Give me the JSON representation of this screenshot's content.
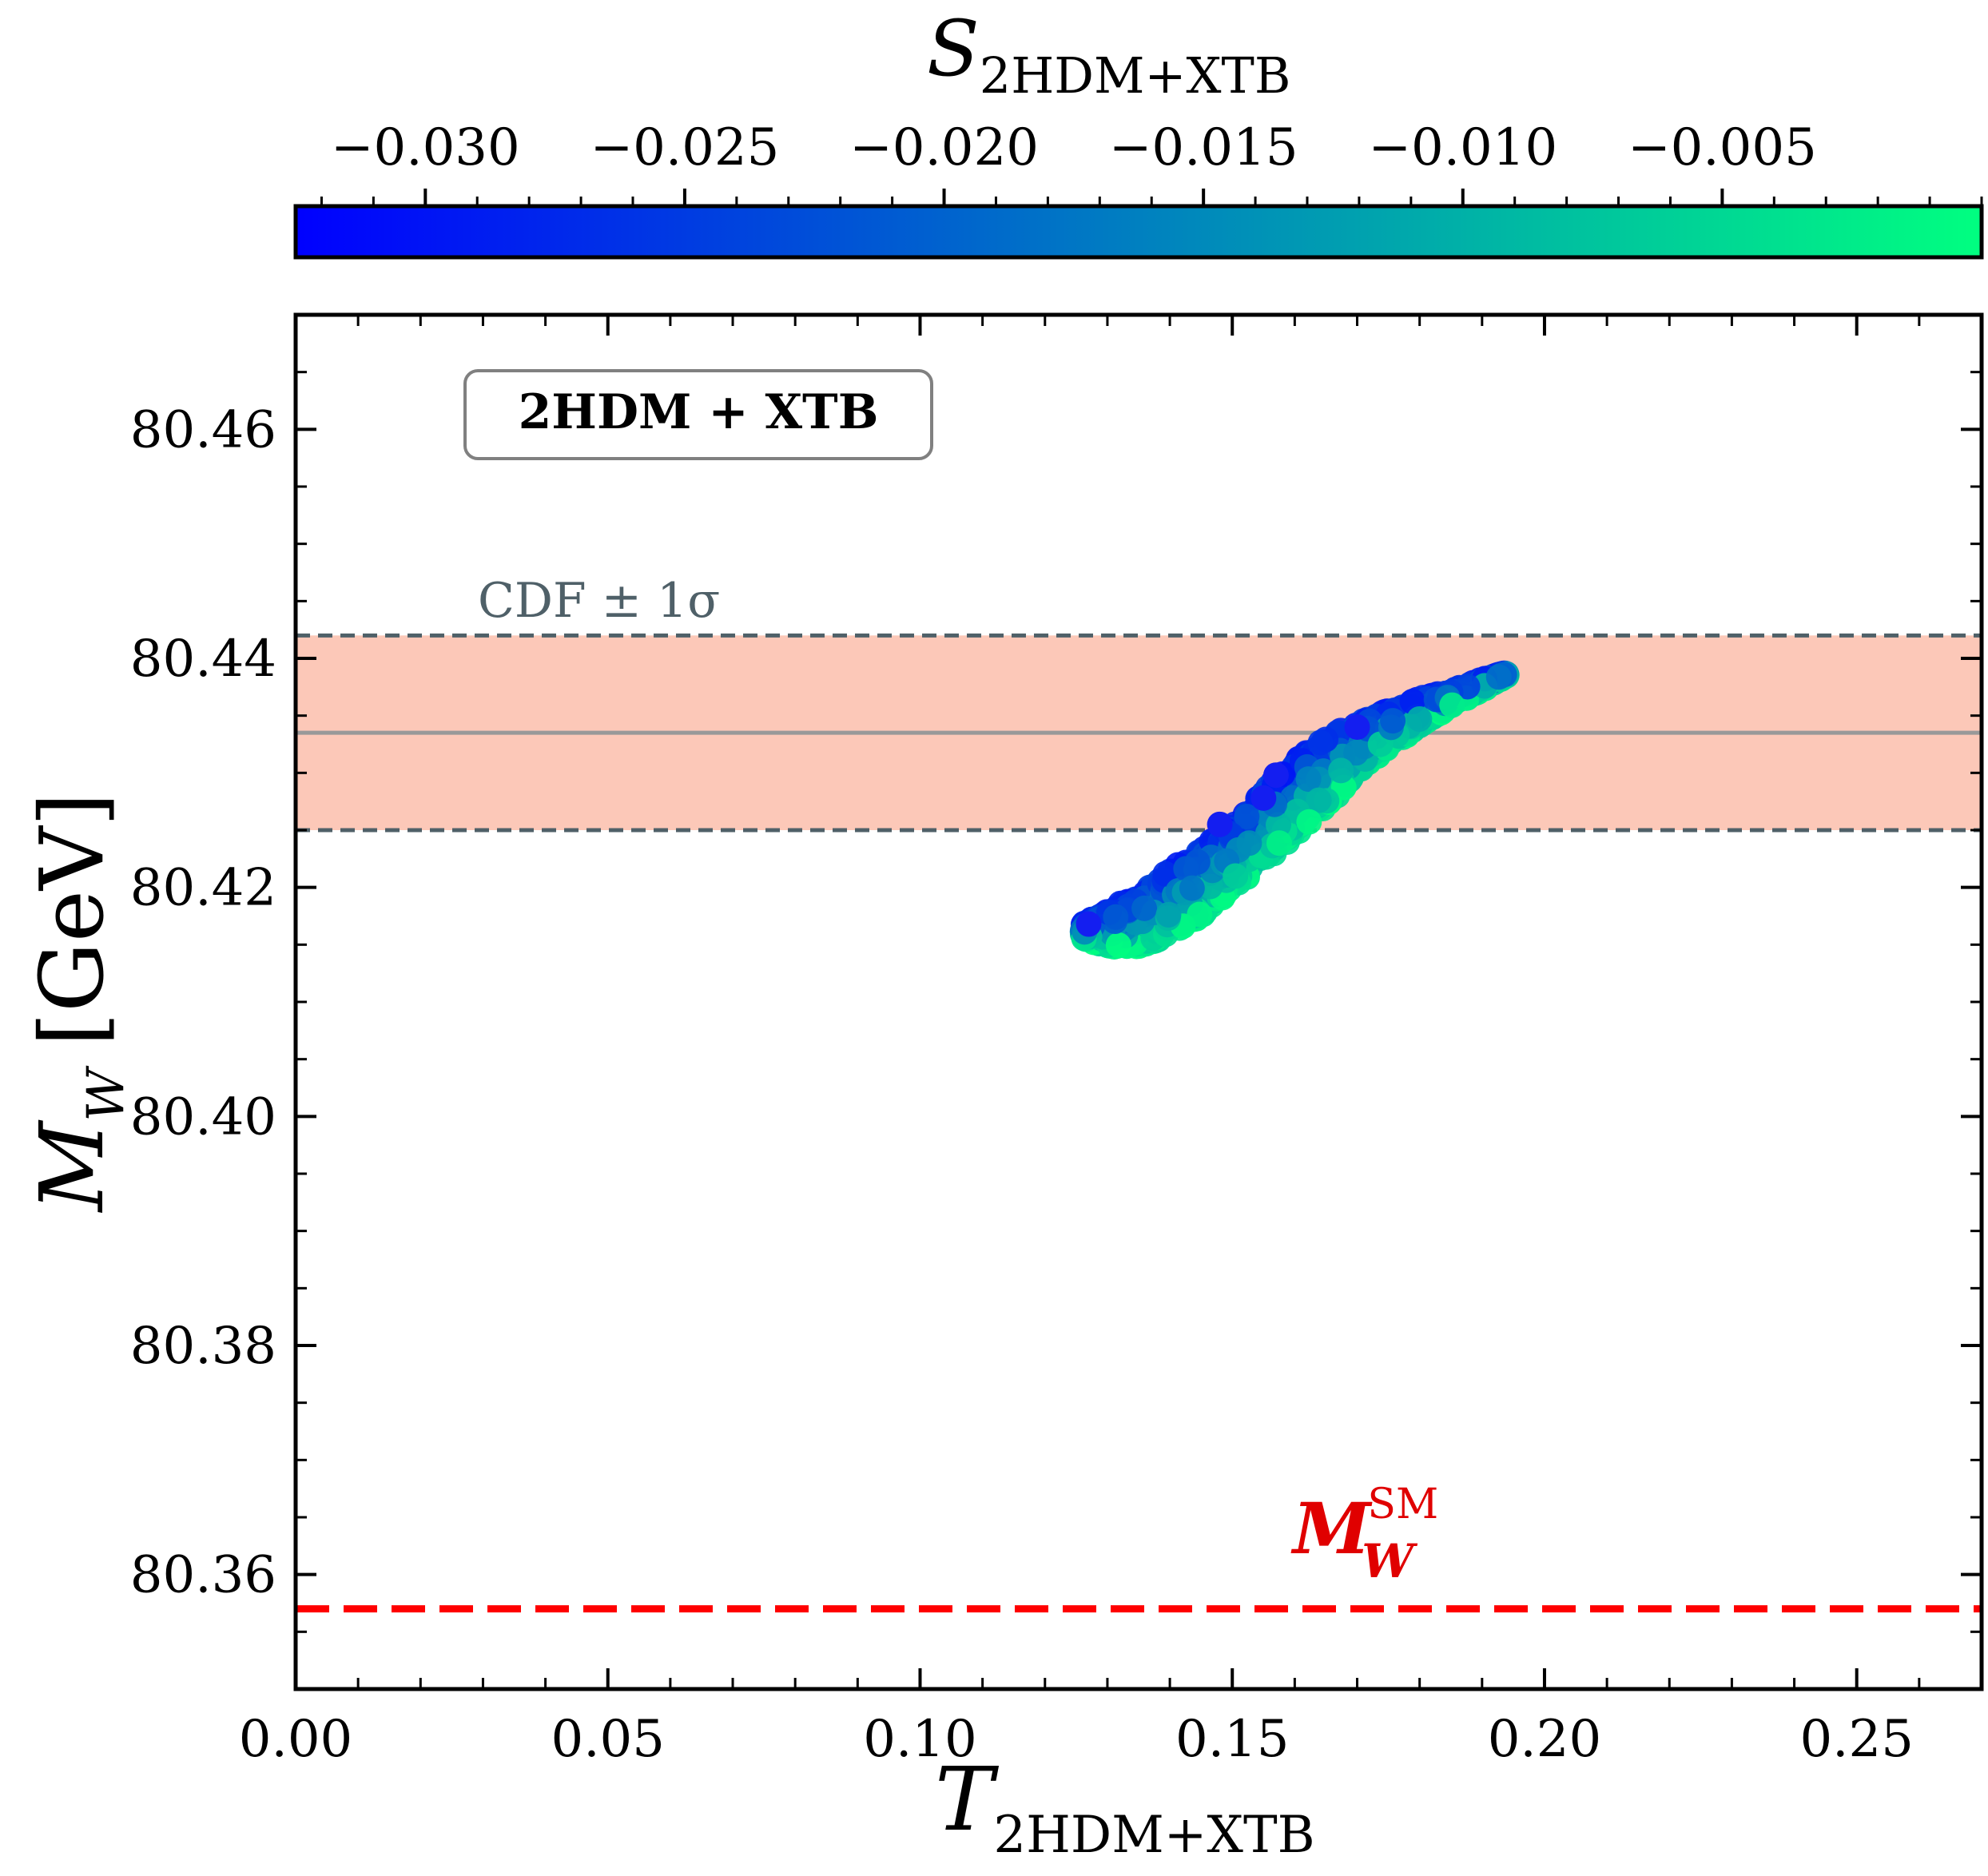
{
  "chart_data": {
    "type": "scatter",
    "title": "",
    "colorbar": {
      "label_main": "S",
      "label_sub": "2HDM+XTB",
      "range": [
        -0.0325,
        0.0
      ],
      "ticks": [
        -0.03,
        -0.025,
        -0.02,
        -0.015,
        -0.01,
        -0.005
      ],
      "tick_labels": [
        "−0.030",
        "−0.025",
        "−0.020",
        "−0.015",
        "−0.010",
        "−0.005"
      ],
      "colormap": [
        "#0000ff",
        "#00ff80"
      ]
    },
    "x_axis": {
      "label_main": "T",
      "label_sub": "2HDM+XTB",
      "range": [
        0.0,
        0.27
      ],
      "ticks": [
        0.0,
        0.05,
        0.1,
        0.15,
        0.2,
        0.25
      ],
      "tick_labels": [
        "0.00",
        "0.05",
        "0.10",
        "0.15",
        "0.20",
        "0.25"
      ]
    },
    "y_axis": {
      "label_main": "M",
      "label_sub": "W",
      "label_unit": "[GeV]",
      "range": [
        80.35,
        80.47
      ],
      "ticks": [
        80.36,
        80.38,
        80.4,
        80.42,
        80.44,
        80.46
      ],
      "tick_labels": [
        "80.36",
        "80.38",
        "80.40",
        "80.42",
        "80.44",
        "80.46"
      ]
    },
    "cdf_band": {
      "label": "CDF ± 1σ",
      "central": 80.4335,
      "lower": 80.425,
      "upper": 80.442,
      "band_color": "#fcc8b8",
      "line_color": "#4f6068",
      "central_color": "#999999"
    },
    "sm_line": {
      "label_main": "M",
      "label_sub": "W",
      "label_sup": "SM",
      "value": 80.357,
      "color": "#ff0000"
    },
    "model_box": {
      "label": "2HDM + XTB"
    },
    "scatter_band": {
      "description_points": "points along band edge (T, M_W)",
      "upper_edge": [
        [
          0.126,
          80.4168
        ],
        [
          0.13,
          80.418
        ],
        [
          0.135,
          80.4195
        ],
        [
          0.14,
          80.4215
        ],
        [
          0.145,
          80.4235
        ],
        [
          0.15,
          80.4255
        ],
        [
          0.155,
          80.4285
        ],
        [
          0.16,
          80.431
        ],
        [
          0.165,
          80.433
        ],
        [
          0.17,
          80.4345
        ],
        [
          0.175,
          80.4355
        ],
        [
          0.18,
          80.4365
        ],
        [
          0.185,
          80.4372
        ],
        [
          0.19,
          80.4382
        ],
        [
          0.194,
          80.4388
        ]
      ],
      "lower_edge": [
        [
          0.126,
          80.4155
        ],
        [
          0.13,
          80.4148
        ],
        [
          0.135,
          80.4148
        ],
        [
          0.14,
          80.4158
        ],
        [
          0.145,
          80.4175
        ],
        [
          0.15,
          80.4198
        ],
        [
          0.155,
          80.422
        ],
        [
          0.16,
          80.4245
        ],
        [
          0.165,
          80.427
        ],
        [
          0.17,
          80.4298
        ],
        [
          0.175,
          80.4322
        ],
        [
          0.18,
          80.434
        ],
        [
          0.185,
          80.4358
        ],
        [
          0.19,
          80.4372
        ],
        [
          0.194,
          80.4385
        ]
      ],
      "outliers": [
        [
          0.157,
          80.4298
        ],
        [
          0.155,
          80.4278
        ],
        [
          0.148,
          80.4255
        ],
        [
          0.17,
          80.434
        ],
        [
          0.127,
          80.4168
        ]
      ]
    }
  }
}
